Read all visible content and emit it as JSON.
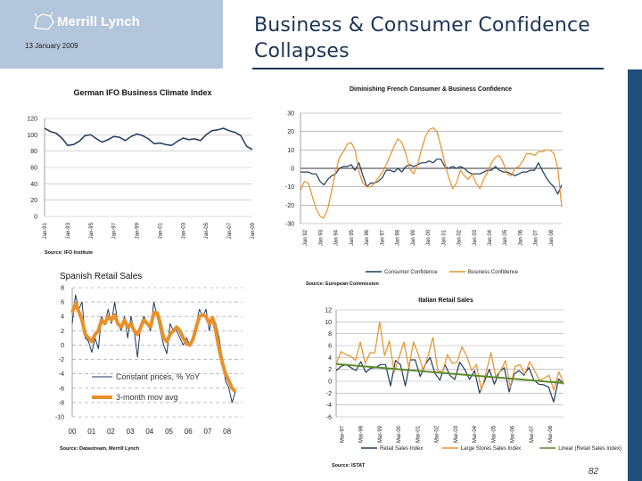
{
  "header": {
    "brand": "Merrill Lynch",
    "date": "13 January 2009",
    "title_line1": "Business & Consumer Confidence",
    "title_line2": "Collapses",
    "page_number": "82"
  },
  "colors": {
    "header_bg": "#b4c6dc",
    "navy": "#1b3556",
    "consumer": "#1f3a5a",
    "business": "#e8902a",
    "trend": "#5a8a2a"
  },
  "chart_data": [
    {
      "type": "line",
      "title": "German IFO Business Climate Index",
      "source": "Source: IFO Institute",
      "ylim": [
        0,
        120
      ],
      "yticks": [
        0,
        20,
        40,
        60,
        80,
        100,
        120
      ],
      "xticks": [
        "Jan-91",
        "Jan-93",
        "Jan-95",
        "Jan-97",
        "Jan-99",
        "Jan-01",
        "Jan-03",
        "Jan-05",
        "Jan-07",
        "Jan-09"
      ],
      "series": [
        {
          "values": [
            108,
            104,
            102,
            96,
            87,
            88,
            92,
            99,
            100,
            95,
            91,
            94,
            98,
            97,
            93,
            98,
            101,
            99,
            95,
            89,
            90,
            88,
            87,
            92,
            96,
            94,
            95,
            93,
            100,
            105,
            106,
            108,
            105,
            103,
            99,
            86,
            82
          ]
        }
      ]
    },
    {
      "type": "line",
      "title": "Diminishing French Consumer & Business Confidence",
      "source": "Source: European Commission",
      "ylim": [
        -30,
        30
      ],
      "yticks": [
        -30,
        -20,
        -10,
        0,
        10,
        20,
        30
      ],
      "xticks": [
        "Jan 92",
        "Jan 93",
        "Jan 94",
        "Jan 95",
        "Jan 96",
        "Jan 97",
        "Jan 98",
        "Jan 99",
        "Jan 00",
        "Jan 01",
        "Jan 02",
        "Jan 03",
        "Jan 04",
        "Jan 05",
        "Jan 06",
        "Jan 07",
        "Jan 08"
      ],
      "legend": "bottom",
      "series": [
        {
          "name": "Consumer Confidence",
          "values": [
            -2,
            -2,
            -2,
            -3,
            -3,
            -7,
            -9,
            -6,
            -4,
            -3,
            0,
            1,
            1,
            2,
            -1,
            3,
            -4,
            -10,
            -8,
            -8,
            -7,
            -5,
            -1,
            -1,
            -2,
            0,
            -2,
            1,
            2,
            1,
            2,
            3,
            3,
            4,
            3,
            5,
            5,
            1,
            0,
            1,
            0,
            1,
            0,
            -2,
            -3,
            -3,
            -3,
            -2,
            -1,
            -1,
            1,
            -1,
            -2,
            -2,
            -3,
            -4,
            -3,
            -2,
            -2,
            -1,
            -1,
            3,
            -1,
            -5,
            -8,
            -10,
            -14,
            -9
          ]
        },
        {
          "name": "Business Confidence",
          "values": [
            -12,
            -7,
            -8,
            -15,
            -22,
            -26,
            -27,
            -22,
            -12,
            -2,
            6,
            9,
            13,
            14,
            10,
            -2,
            -8,
            -10,
            -10,
            -8,
            -5,
            -2,
            2,
            7,
            12,
            16,
            14,
            8,
            0,
            -3,
            2,
            10,
            17,
            21,
            22,
            20,
            12,
            3,
            -5,
            -11,
            -8,
            -1,
            -4,
            -6,
            -3,
            -8,
            -11,
            -6,
            -2,
            3,
            6,
            7,
            3,
            -3,
            -4,
            0,
            1,
            4,
            8,
            8,
            7,
            9,
            9,
            10,
            10,
            8,
            0,
            -21
          ]
        }
      ]
    },
    {
      "type": "line",
      "title": "Spanish Retail Sales",
      "source": "Source: Datastream, Merrill Lynch",
      "ylim": [
        -10,
        8
      ],
      "yticks": [
        -10,
        -8,
        -6,
        -4,
        -2,
        0,
        2,
        4,
        6,
        8
      ],
      "xticks": [
        "00",
        "01",
        "02",
        "03",
        "04",
        "05",
        "06",
        "07",
        "08"
      ],
      "legend": "inside",
      "series": [
        {
          "name": "Constant prices, % YoY",
          "values": [
            3,
            7,
            5,
            6,
            1,
            0.5,
            -1,
            1,
            -0.5,
            4,
            3,
            5,
            3,
            6,
            3,
            2,
            4,
            1,
            4,
            2,
            -1.7,
            3,
            4,
            3,
            2,
            6,
            4,
            2,
            0,
            -1.2,
            3,
            2,
            2,
            1,
            0,
            1,
            0,
            1,
            3,
            5,
            4,
            5,
            2,
            4,
            3,
            1,
            -2,
            -5,
            -6,
            -8,
            -6.5
          ]
        },
        {
          "name": "3-month mov avg",
          "values": [
            4.5,
            5.8,
            4.7,
            3.5,
            1.5,
            1,
            0.5,
            1.5,
            2,
            3.5,
            3,
            4,
            3.5,
            4.2,
            3,
            2.5,
            3.5,
            2.5,
            3,
            2,
            1.5,
            2.5,
            3.5,
            3,
            2.5,
            4.5,
            4.5,
            3,
            1,
            0.5,
            1.5,
            2,
            2.5,
            2,
            1,
            0.2,
            0,
            0.8,
            2.5,
            4,
            4.2,
            4,
            3,
            3.8,
            2,
            -0.5,
            -2.5,
            -4,
            -5,
            -6,
            -6.5
          ]
        }
      ]
    },
    {
      "type": "line",
      "title": "Italian Retail Sales",
      "source": "Source: ISTAT",
      "ylim": [
        -6,
        12
      ],
      "yticks": [
        -6,
        -4,
        -2,
        0,
        2,
        4,
        6,
        8,
        10,
        12
      ],
      "xticks": [
        "Mar-97",
        "Mar-98",
        "Mar-99",
        "Mar-00",
        "Mar-01",
        "Mar-02",
        "Mar-03",
        "Mar-04",
        "Mar-05",
        "Mar-06",
        "Mar-07",
        "Mar-08"
      ],
      "legend": "bottom",
      "series": [
        {
          "name": "Retail Sales Index",
          "values": [
            1.8,
            2.5,
            2.8,
            2.3,
            1.8,
            3.3,
            1.5,
            2.2,
            2.3,
            2.8,
            2.8,
            -0.8,
            3.5,
            2.8,
            -0.8,
            3.6,
            3.6,
            0.8,
            2.8,
            4,
            1.3,
            0.2,
            2.8,
            1,
            0.3,
            3.2,
            2,
            0.3,
            1.8,
            -2,
            0,
            2,
            -0.5,
            1.5,
            2.3,
            -1.8,
            1.2,
            1.8,
            1,
            2.3,
            0.2,
            -0.5,
            -0.6,
            -1,
            -3.5,
            0.4,
            -0.5
          ]
        },
        {
          "name": "Large Stores Sales Index",
          "values": [
            2.8,
            5,
            4.5,
            4.2,
            3.5,
            6.6,
            3,
            4.8,
            4.8,
            10,
            4.3,
            6.8,
            1.5,
            4,
            6.6,
            2.3,
            6.6,
            4.5,
            1.8,
            4.3,
            7.4,
            1.8,
            1.6,
            4.5,
            3,
            3.2,
            5.8,
            4.2,
            1.8,
            2.8,
            -1.5,
            1.5,
            4.8,
            0.8,
            1.8,
            3.5,
            -1,
            2.5,
            2.8,
            1.2,
            3.3,
            1.8,
            0.2,
            0.5,
            1,
            -1.5,
            1.6,
            -0.3
          ]
        },
        {
          "name": "Linear (Retail Sales Index)",
          "values": [
            2.9,
            -0.3
          ]
        }
      ]
    }
  ]
}
